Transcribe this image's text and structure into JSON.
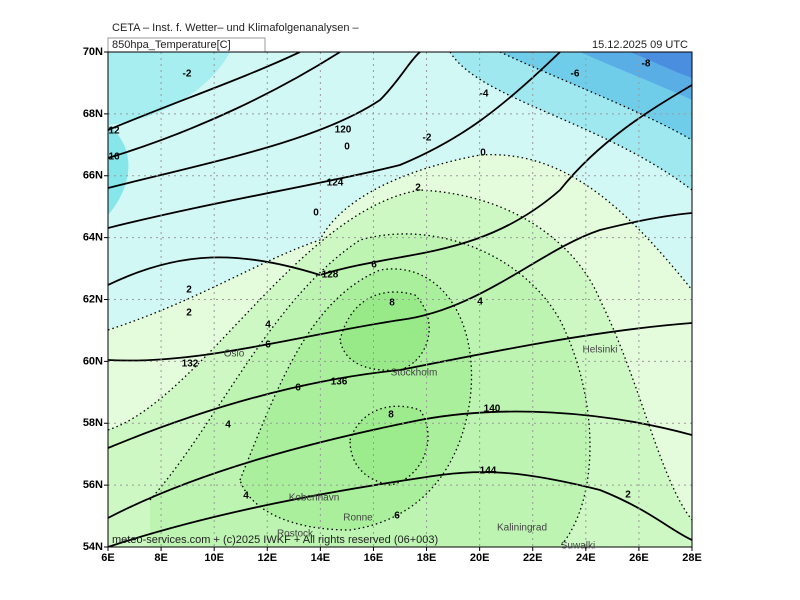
{
  "header": {
    "title": "CETA – Inst. f. Wetter– und Klimafolgenanalysen –",
    "product": "850hpa_Temperature[C]",
    "valid_time": "15.12.2025 09 UTC"
  },
  "axes": {
    "lat_labels": [
      "70N",
      "68N",
      "66N",
      "64N",
      "62N",
      "60N",
      "58N",
      "56N",
      "54N"
    ],
    "lon_labels": [
      "6E",
      "8E",
      "10E",
      "12E",
      "14E",
      "16E",
      "18E",
      "20E",
      "22E",
      "24E",
      "26E",
      "28E"
    ]
  },
  "contour_labels": [
    "-2",
    "-2",
    "-4",
    "-6",
    "-8",
    "120",
    "0",
    "124",
    "0",
    "0",
    "2",
    "128",
    "6",
    "8",
    "4",
    "2",
    "2",
    "4",
    "6",
    "132",
    "136",
    "6",
    "140",
    "8",
    "4",
    "144",
    "2",
    "4",
    "6",
    "12",
    "16"
  ],
  "places": [
    "Oslo",
    "Stockholm",
    "Helsinki",
    "Kobenhavn",
    "Ronne",
    "Kaliningrad",
    "Rostock",
    "Suwalki"
  ],
  "footer": "meteo-services.com + (c)2025 IWKF + All rights reserved (06+003)"
}
